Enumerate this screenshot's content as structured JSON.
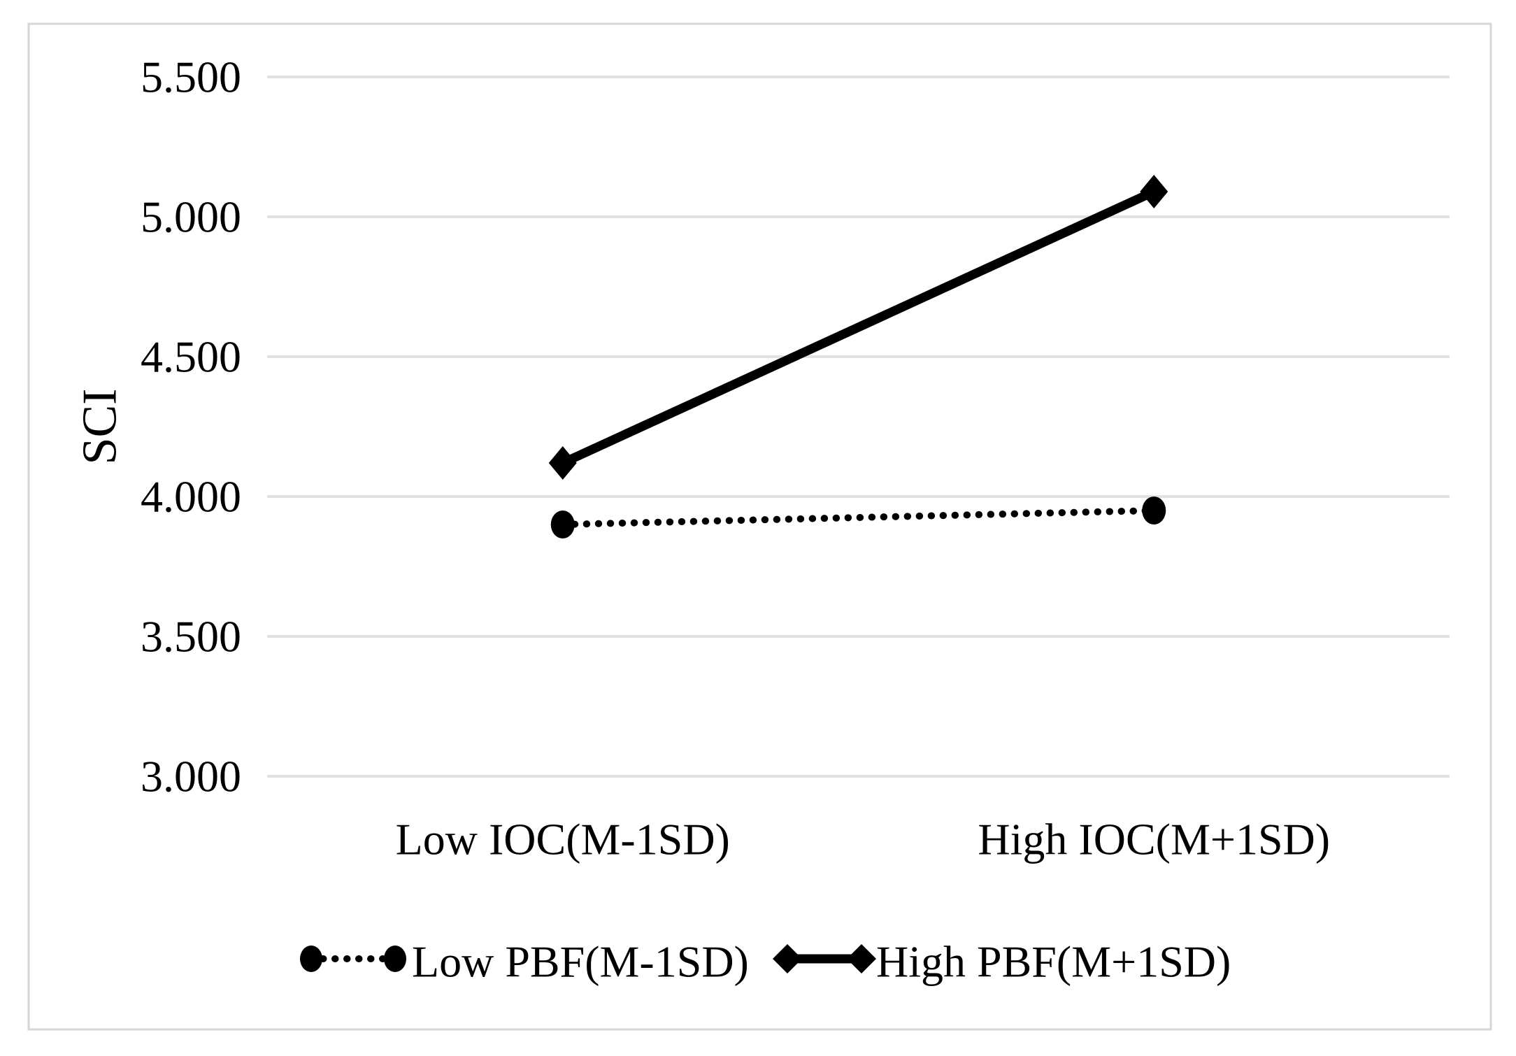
{
  "chart_data": {
    "type": "line",
    "title": "",
    "xlabel": "",
    "ylabel": "SCI",
    "categories": [
      "Low IOC(M-1SD)",
      "High IOC(M+1SD)"
    ],
    "series": [
      {
        "name": "Low PBF(M-1SD)",
        "values": [
          3.9,
          3.95
        ],
        "line_style": "dotted",
        "marker": "circle",
        "color": "#000000"
      },
      {
        "name": "High PBF(M+1SD)",
        "values": [
          4.12,
          5.09
        ],
        "line_style": "solid",
        "marker": "diamond",
        "color": "#000000"
      }
    ],
    "y_ticks": [
      {
        "value": 5.5,
        "label": "5.500"
      },
      {
        "value": 5.0,
        "label": "5.000"
      },
      {
        "value": 4.5,
        "label": "4.500"
      },
      {
        "value": 4.0,
        "label": "4.000"
      },
      {
        "value": 3.5,
        "label": "3.500"
      },
      {
        "value": 3.0,
        "label": "3.000"
      }
    ],
    "ylim": [
      3.0,
      5.5
    ],
    "grid": true,
    "legend_position": "bottom-center"
  },
  "colors": {
    "series": "#000000",
    "text": "#000000",
    "gridline": "#e2e2e2",
    "frame_border": "#d6d6d6",
    "background": "#ffffff"
  }
}
